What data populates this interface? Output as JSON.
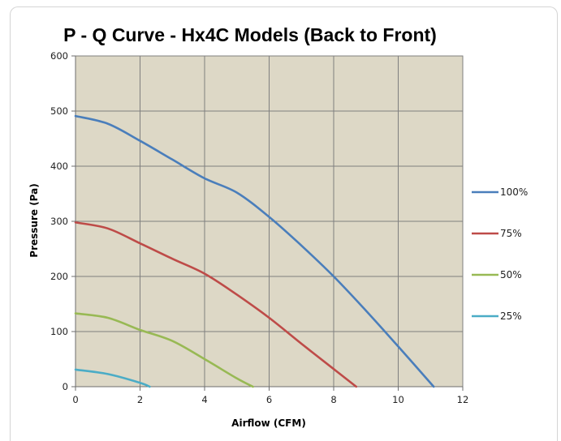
{
  "chart_data": {
    "type": "line",
    "title": "P - Q Curve - Hx4C Models (Back to Front)",
    "xlabel": "Airflow (CFM)",
    "ylabel": "Pressure (Pa)",
    "xlim": [
      0,
      12
    ],
    "ylim": [
      0,
      600
    ],
    "xticks": [
      0,
      2,
      4,
      6,
      8,
      10,
      12
    ],
    "yticks": [
      0,
      100,
      200,
      300,
      400,
      500,
      600
    ],
    "grid": true,
    "legend_position": "right",
    "plot_background": "#ddd8c6",
    "series": [
      {
        "name": "100%",
        "color": "#4a7ebb",
        "x": [
          0,
          1,
          2,
          3,
          4,
          5,
          6,
          7,
          8,
          9,
          10,
          11.1
        ],
        "y": [
          491,
          477,
          446,
          412,
          378,
          352,
          308,
          256,
          200,
          138,
          73,
          0
        ]
      },
      {
        "name": "75%",
        "color": "#be4b48",
        "x": [
          0,
          1,
          2,
          3,
          4,
          5,
          6,
          7,
          8,
          8.7
        ],
        "y": [
          298,
          287,
          260,
          232,
          205,
          167,
          125,
          78,
          32,
          0
        ]
      },
      {
        "name": "50%",
        "color": "#98b954",
        "x": [
          0,
          1,
          2,
          3,
          4,
          5,
          5.5
        ],
        "y": [
          133,
          125,
          103,
          83,
          50,
          15,
          0
        ]
      },
      {
        "name": "25%",
        "color": "#4bacc6",
        "x": [
          0,
          1,
          2,
          2.3
        ],
        "y": [
          31,
          23,
          7,
          0
        ]
      }
    ]
  }
}
